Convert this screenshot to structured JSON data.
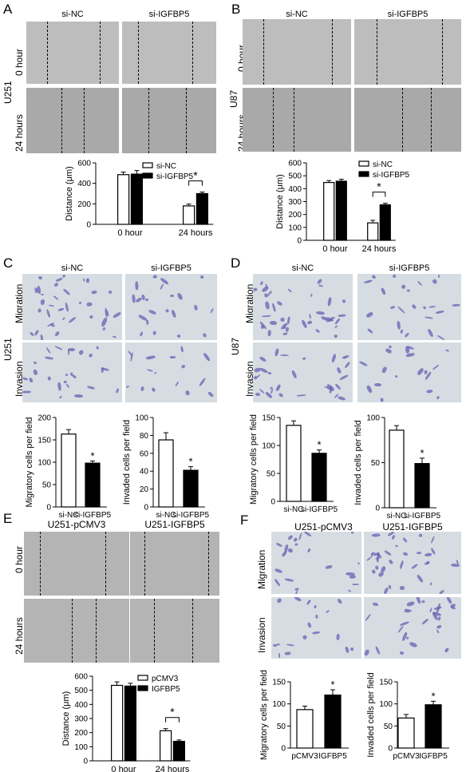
{
  "panels": [
    {
      "letter": "A",
      "line": "U251",
      "columns": [
        "si-NC",
        "si-IGFBP5"
      ],
      "rows": [
        "0 hour",
        "24 hours"
      ]
    },
    {
      "letter": "B",
      "line": "U87",
      "columns": [
        "si-NC",
        "si-IGFBP5"
      ],
      "rows": [
        "0 hour",
        "24 hours"
      ]
    },
    {
      "letter": "C",
      "line": "U251",
      "columns": [
        "si-NC",
        "si-IGFBP5"
      ],
      "rows": [
        "Migration",
        "Invasion"
      ]
    },
    {
      "letter": "D",
      "line": "U87",
      "columns": [
        "si-NC",
        "si-IGFBP5"
      ],
      "rows": [
        "Migration",
        "Invasion"
      ]
    },
    {
      "letter": "E",
      "line": "",
      "columns": [
        "U251-pCMV3",
        "U251-IGFBP5"
      ],
      "rows": [
        "0 hour",
        "24 hours"
      ]
    },
    {
      "letter": "F",
      "line": "",
      "columns": [
        "U251-pCMV3",
        "U251-IGFBP5"
      ],
      "rows": [
        "Migration",
        "Invasion"
      ]
    }
  ],
  "chart_data": [
    {
      "id": "A",
      "type": "bar",
      "ylabel": "Distance (μm)",
      "ylim": [
        0,
        600
      ],
      "yticks": [
        "0",
        "200",
        "400",
        "600"
      ],
      "categories": [
        "0 hour",
        "24 hours"
      ],
      "legend_position": "top-right",
      "series": [
        {
          "name": "si-NC",
          "values": [
            485,
            180
          ],
          "errors": [
            25,
            18
          ],
          "fill": "#ffffff"
        },
        {
          "name": "si-IGFBP5",
          "values": [
            490,
            300
          ],
          "errors": [
            35,
            15
          ],
          "fill": "#000000"
        }
      ],
      "significance": [
        {
          "category": "24 hours",
          "label": "*"
        }
      ]
    },
    {
      "id": "B",
      "type": "bar",
      "ylabel": "Distance (μm)",
      "ylim": [
        0,
        600
      ],
      "yticks": [
        "0",
        "100",
        "200",
        "300",
        "400",
        "500",
        "600"
      ],
      "categories": [
        "0 hour",
        "24 hours"
      ],
      "legend_position": "top-right",
      "series": [
        {
          "name": "si-NC",
          "values": [
            448,
            135
          ],
          "errors": [
            15,
            20
          ],
          "fill": "#ffffff"
        },
        {
          "name": "si-IGFBP5",
          "values": [
            458,
            275
          ],
          "errors": [
            15,
            12
          ],
          "fill": "#000000"
        }
      ],
      "significance": [
        {
          "category": "24 hours",
          "label": "*"
        }
      ]
    },
    {
      "id": "C1",
      "type": "bar",
      "ylabel": "Migratory cells per field",
      "ylim": [
        0,
        200
      ],
      "yticks": [
        "0",
        "50",
        "100",
        "150",
        "200"
      ],
      "categories": [
        "si-NC",
        "si-IGFBP5"
      ],
      "values": [
        163,
        98
      ],
      "errors": [
        10,
        5
      ],
      "fills": [
        "#ffffff",
        "#000000"
      ],
      "stars": [
        "",
        "*"
      ]
    },
    {
      "id": "C2",
      "type": "bar",
      "ylabel": "Invaded cells per field",
      "ylim": [
        0,
        100
      ],
      "yticks": [
        "0",
        "20",
        "40",
        "60",
        "80",
        "100"
      ],
      "categories": [
        "si-NC",
        "si-IGFBP5"
      ],
      "values": [
        75,
        41
      ],
      "errors": [
        8,
        4
      ],
      "fills": [
        "#ffffff",
        "#000000"
      ],
      "stars": [
        "",
        "*"
      ]
    },
    {
      "id": "D1",
      "type": "bar",
      "ylabel": "Migratory cells per field",
      "ylim": [
        0,
        150
      ],
      "yticks": [
        "0",
        "50",
        "100",
        "150"
      ],
      "categories": [
        "si-NC",
        "si-IGFBP5"
      ],
      "values": [
        136,
        86
      ],
      "errors": [
        8,
        6
      ],
      "fills": [
        "#ffffff",
        "#000000"
      ],
      "stars": [
        "",
        "*"
      ]
    },
    {
      "id": "D2",
      "type": "bar",
      "ylabel": "Invaded cells per field",
      "ylim": [
        0,
        100
      ],
      "yticks": [
        "0",
        "50",
        "100"
      ],
      "categories": [
        "si-NC",
        "si-IGFBP5"
      ],
      "values": [
        86,
        49
      ],
      "errors": [
        5,
        6
      ],
      "fills": [
        "#ffffff",
        "#000000"
      ],
      "stars": [
        "",
        "*"
      ]
    },
    {
      "id": "E",
      "type": "bar",
      "ylabel": "Distance (μm)",
      "ylim": [
        0,
        600
      ],
      "yticks": [
        "0",
        "100",
        "200",
        "300",
        "400",
        "500",
        "600"
      ],
      "categories": [
        "0 hour",
        "24 hours"
      ],
      "legend_position": "top-right",
      "series": [
        {
          "name": "pCMV3",
          "values": [
            535,
            213
          ],
          "errors": [
            25,
            15
          ],
          "fill": "#ffffff"
        },
        {
          "name": "IGFBP5",
          "values": [
            530,
            138
          ],
          "errors": [
            20,
            10
          ],
          "fill": "#000000"
        }
      ],
      "significance": [
        {
          "category": "24 hours",
          "label": "*"
        }
      ]
    },
    {
      "id": "F1",
      "type": "bar",
      "ylabel": "Migratory cells per field",
      "ylim": [
        0,
        150
      ],
      "yticks": [
        "0",
        "50",
        "100",
        "150"
      ],
      "categories": [
        "pCMV3",
        "IGFBP5"
      ],
      "values": [
        87,
        120
      ],
      "errors": [
        8,
        12
      ],
      "fills": [
        "#ffffff",
        "#000000"
      ],
      "stars": [
        "",
        "*"
      ]
    },
    {
      "id": "F2",
      "type": "bar",
      "ylabel": "Invaded cells per field",
      "ylim": [
        0,
        150
      ],
      "yticks": [
        "0",
        "50",
        "100",
        "150"
      ],
      "categories": [
        "pCMV3",
        "IGFBP5"
      ],
      "values": [
        68,
        98
      ],
      "errors": [
        8,
        8
      ],
      "fills": [
        "#ffffff",
        "#000000"
      ],
      "stars": [
        "",
        "*"
      ]
    }
  ]
}
